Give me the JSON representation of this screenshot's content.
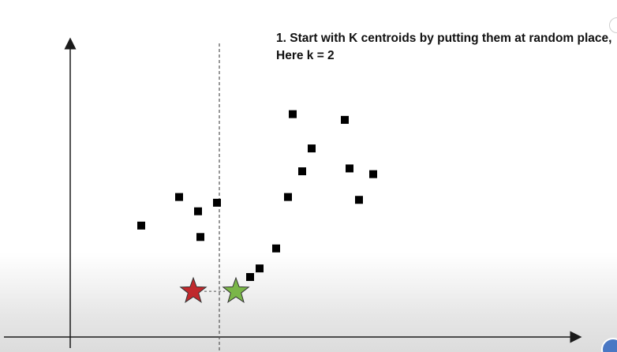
{
  "caption": {
    "line1": "1. Start with K centroids by putting them at random place,",
    "line2": "Here k = 2"
  },
  "chart_data": {
    "type": "scatter",
    "title": "",
    "xlabel": "",
    "ylabel": "",
    "grid": false,
    "xlim": [
      0,
      100
    ],
    "ylim": [
      0,
      100
    ],
    "points": [
      {
        "x": 15,
        "y": 39
      },
      {
        "x": 23,
        "y": 49
      },
      {
        "x": 27,
        "y": 44
      },
      {
        "x": 27.5,
        "y": 35
      },
      {
        "x": 31,
        "y": 47
      },
      {
        "x": 47,
        "y": 78
      },
      {
        "x": 49,
        "y": 58
      },
      {
        "x": 46,
        "y": 49
      },
      {
        "x": 51,
        "y": 66
      },
      {
        "x": 58,
        "y": 76
      },
      {
        "x": 59,
        "y": 59
      },
      {
        "x": 61,
        "y": 48
      },
      {
        "x": 64,
        "y": 57
      },
      {
        "x": 43.5,
        "y": 31
      },
      {
        "x": 40,
        "y": 24
      },
      {
        "x": 38,
        "y": 21
      }
    ],
    "centroids": [
      {
        "x": 26,
        "y": 16,
        "color": "#c0282c"
      },
      {
        "x": 35,
        "y": 16,
        "color": "#7ab648"
      }
    ],
    "divider_x": 31.5,
    "colors": {
      "axis": "#1a1a1a",
      "point": "#000000",
      "divider": "#555555"
    }
  }
}
